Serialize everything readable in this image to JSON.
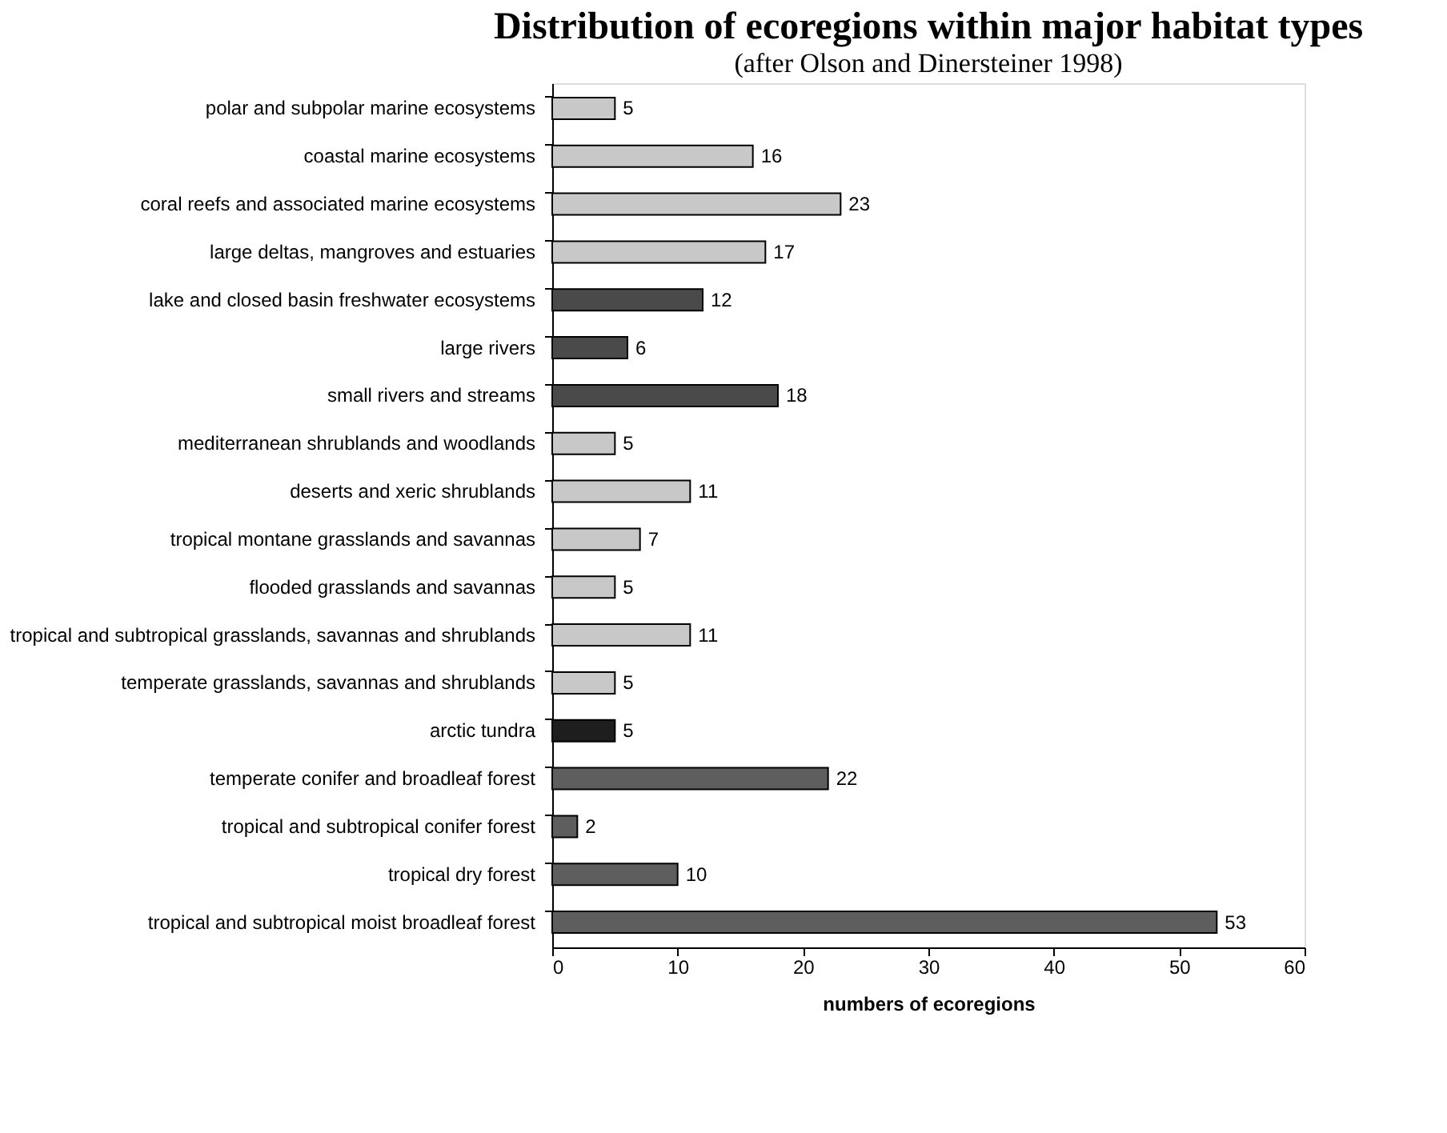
{
  "chart_data": {
    "type": "bar",
    "orientation": "horizontal",
    "title": "Distribution of ecoregions within major habitat types",
    "subtitle": "(after Olson and Dinersteiner 1998)",
    "xlabel": "numbers of ecoregions",
    "categories": [
      "polar and subpolar marine ecosystems",
      "coastal marine ecosystems",
      "coral reefs and associated marine ecosystems",
      "large deltas, mangroves and estuaries",
      "lake and closed basin freshwater ecosystems",
      "large rivers",
      "small rivers and streams",
      "mediterranean shrublands and woodlands",
      "deserts and xeric shrublands",
      "tropical montane grasslands and savannas",
      "flooded grasslands and savannas",
      "tropical and subtropical grasslands, savannas and shrublands",
      "temperate grasslands, savannas and shrublands",
      "arctic tundra",
      "temperate conifer and broadleaf forest",
      "tropical and subtropical conifer forest",
      "tropical dry forest",
      "tropical and subtropical moist broadleaf forest"
    ],
    "values": [
      5,
      16,
      23,
      17,
      12,
      6,
      18,
      5,
      11,
      7,
      5,
      11,
      5,
      5,
      22,
      2,
      10,
      53
    ],
    "colors": [
      "#c8c8c8",
      "#c8c8c8",
      "#c8c8c8",
      "#c8c8c8",
      "#4a4a4a",
      "#4a4a4a",
      "#4a4a4a",
      "#c8c8c8",
      "#c8c8c8",
      "#c8c8c8",
      "#c8c8c8",
      "#c8c8c8",
      "#c8c8c8",
      "#1e1e1e",
      "#5e5e5e",
      "#5e5e5e",
      "#5e5e5e",
      "#5e5e5e"
    ],
    "xlim": [
      0,
      60
    ],
    "xticks": [
      0,
      10,
      20,
      30,
      40,
      50,
      60
    ],
    "data_labels": true,
    "grid": false
  }
}
